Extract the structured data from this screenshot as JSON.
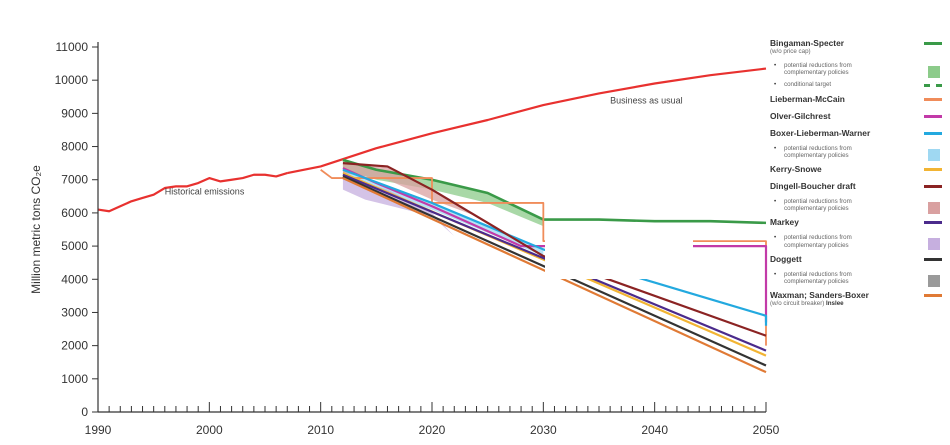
{
  "chart_data": {
    "type": "line",
    "title": "",
    "xlabel": "",
    "ylabel": "Million metric tons CO₂e",
    "xlim": [
      1990,
      2050
    ],
    "ylim": [
      0,
      11000
    ],
    "x_ticks": [
      "1990",
      "2000",
      "2010",
      "2020",
      "2030",
      "2040",
      "2050"
    ],
    "y_ticks": [
      "0",
      "1000",
      "2000",
      "3000",
      "4000",
      "5000",
      "6000",
      "7000",
      "8000",
      "9000",
      "10000",
      "11000"
    ],
    "grid": false,
    "legend_position": "right",
    "annotations": [
      {
        "text": "Historical emissions",
        "x": 1996,
        "y": 6550
      },
      {
        "text": "Business as usual",
        "x": 2036,
        "y": 9300
      }
    ],
    "series": [
      {
        "name": "Historical emissions",
        "color": "#e8312f",
        "width": 2.2,
        "points": [
          [
            1990,
            6100
          ],
          [
            1991,
            6050
          ],
          [
            1992,
            6200
          ],
          [
            1993,
            6350
          ],
          [
            1994,
            6450
          ],
          [
            1995,
            6550
          ],
          [
            1996,
            6750
          ],
          [
            1997,
            6800
          ],
          [
            1998,
            6800
          ],
          [
            1999,
            6900
          ],
          [
            2000,
            7050
          ],
          [
            2001,
            6950
          ],
          [
            2002,
            7000
          ],
          [
            2003,
            7050
          ],
          [
            2004,
            7150
          ],
          [
            2005,
            7150
          ],
          [
            2006,
            7100
          ],
          [
            2007,
            7200
          ]
        ]
      },
      {
        "name": "Business as usual",
        "color": "#e8312f",
        "width": 2.2,
        "points": [
          [
            2007,
            7200
          ],
          [
            2010,
            7400
          ],
          [
            2015,
            7950
          ],
          [
            2020,
            8400
          ],
          [
            2025,
            8800
          ],
          [
            2030,
            9250
          ],
          [
            2035,
            9600
          ],
          [
            2040,
            9900
          ],
          [
            2045,
            10150
          ],
          [
            2050,
            10350
          ]
        ]
      },
      {
        "name": "Bingaman-Specter",
        "color": "#3a9a48",
        "width": 2.6,
        "points": [
          [
            2012,
            7600
          ],
          [
            2015,
            7300
          ],
          [
            2020,
            7000
          ],
          [
            2025,
            6600
          ],
          [
            2030,
            5800
          ],
          [
            2035,
            5800
          ],
          [
            2040,
            5750
          ],
          [
            2045,
            5750
          ],
          [
            2050,
            5700
          ]
        ]
      },
      {
        "name": "Lieberman-McCain",
        "color": "#f08c5a",
        "width": 1.8,
        "step": true,
        "points": [
          [
            2010,
            7300
          ],
          [
            2011,
            7050
          ],
          [
            2020,
            7050
          ],
          [
            2020,
            6300
          ],
          [
            2030,
            6300
          ],
          [
            2030,
            5150
          ],
          [
            2050,
            5150
          ],
          [
            2050,
            2000
          ]
        ]
      },
      {
        "name": "Olver-Gilchrest",
        "color": "#c23aa8",
        "width": 2.2,
        "points": [
          [
            2012,
            7350
          ],
          [
            2015,
            6900
          ],
          [
            2020,
            6200
          ],
          [
            2025,
            5450
          ],
          [
            2028,
            5000
          ],
          [
            2050,
            5000
          ],
          [
            2050,
            2700
          ]
        ]
      },
      {
        "name": "Boxer-Lieberman-Warner",
        "color": "#23a9df",
        "width": 2.2,
        "points": [
          [
            2012,
            7300
          ],
          [
            2020,
            6300
          ],
          [
            2025,
            5600
          ],
          [
            2030,
            4900
          ],
          [
            2035,
            4400
          ],
          [
            2040,
            3900
          ],
          [
            2045,
            3400
          ],
          [
            2050,
            2900
          ],
          [
            2050,
            2600
          ]
        ]
      },
      {
        "name": "Kerry-Snowe",
        "color": "#f2b433",
        "width": 2.2,
        "points": [
          [
            2012,
            7200
          ],
          [
            2050,
            1700
          ]
        ]
      },
      {
        "name": "Dingell-Boucher draft",
        "color": "#8b2323",
        "width": 2.2,
        "points": [
          [
            2012,
            7500
          ],
          [
            2016,
            7400
          ],
          [
            2020,
            6700
          ],
          [
            2030,
            4700
          ],
          [
            2050,
            2300
          ]
        ]
      },
      {
        "name": "Markey",
        "color": "#4b2b8c",
        "width": 2.2,
        "points": [
          [
            2012,
            7150
          ],
          [
            2050,
            1850
          ]
        ]
      },
      {
        "name": "Doggett",
        "color": "#333333",
        "width": 2.2,
        "points": [
          [
            2012,
            7100
          ],
          [
            2050,
            1400
          ]
        ]
      },
      {
        "name": "Waxman; Sanders-Boxer",
        "color": "#e07a35",
        "width": 2.2,
        "points": [
          [
            2012,
            7050
          ],
          [
            2050,
            1200
          ]
        ]
      }
    ],
    "legend": [
      {
        "name": "Bingaman-Specter",
        "sub": "(w/o price cap)",
        "swatch": "line",
        "color": "#3a9a48"
      },
      {
        "bullet": "potential reductions from complementary policies",
        "swatch": "box",
        "color": "#8ccb8a"
      },
      {
        "bullet": "conditional target",
        "swatch": "dash",
        "color": "#3a9a48"
      },
      {
        "name": "Lieberman-McCain",
        "swatch": "line",
        "color": "#f08c5a"
      },
      {
        "name": "Olver-Gilchrest",
        "swatch": "line",
        "color": "#c23aa8"
      },
      {
        "name": "Boxer-Lieberman-Warner",
        "swatch": "line",
        "color": "#23a9df"
      },
      {
        "bullet": "potential reductions from complementary policies",
        "swatch": "box",
        "color": "#9fd8f2"
      },
      {
        "name": "Kerry-Snowe",
        "swatch": "line",
        "color": "#f2b433"
      },
      {
        "name": "Dingell-Boucher draft",
        "swatch": "line",
        "color": "#8b2323"
      },
      {
        "bullet": "potential reductions from complementary policies",
        "swatch": "box",
        "color": "#d9a0a0"
      },
      {
        "name": "Markey",
        "swatch": "line",
        "color": "#4b2b8c"
      },
      {
        "bullet": "potential reductions from complementary policies",
        "swatch": "box",
        "color": "#c6afdf"
      },
      {
        "name": "Doggett",
        "swatch": "line",
        "color": "#333333"
      },
      {
        "bullet": "potential reductions from complementary policies",
        "swatch": "box",
        "color": "#9a9a9a"
      },
      {
        "name": "Waxman; Sanders-Boxer",
        "sub": "(w/o circuit breaker)",
        "tail": "Inslee",
        "swatch": "line",
        "color": "#e07a35"
      }
    ]
  }
}
